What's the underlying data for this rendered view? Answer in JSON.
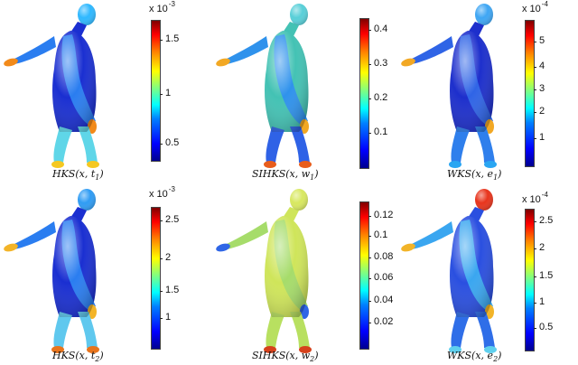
{
  "panels": [
    {
      "id": "hks-t1",
      "caption": {
        "func": "HKS",
        "arg": "x",
        "param": "t",
        "sub": "1"
      },
      "scale_label": {
        "base": "x 10",
        "exp": "-3"
      },
      "ticks": [
        "1.5",
        "1",
        "0.5"
      ],
      "colors": {
        "body": "#1a2fd1",
        "arm": "#2a7df0",
        "leg": "#5fd6e8",
        "head": "#2fb8ff",
        "hand": "#f28a1a",
        "foot": "#f5c821"
      }
    },
    {
      "id": "sihks-w1",
      "caption": {
        "func": "SIHKS",
        "arg": "x",
        "param": "w",
        "sub": "1"
      },
      "scale_label": {
        "base": "",
        "exp": ""
      },
      "ticks": [
        "0.4",
        "0.3",
        "0.2",
        "0.1"
      ],
      "colors": {
        "body": "#43c2b4",
        "arm": "#2f92ec",
        "leg": "#2f62e6",
        "head": "#58cfd8",
        "hand": "#f2a824",
        "foot": "#e85d1c"
      }
    },
    {
      "id": "wks-e1",
      "caption": {
        "func": "WKS",
        "arg": "x",
        "param": "e",
        "sub": "1"
      },
      "scale_label": {
        "base": "x 10",
        "exp": "-4"
      },
      "ticks": [
        "5",
        "4",
        "3",
        "2",
        "1"
      ],
      "colors": {
        "body": "#1d2fcc",
        "arm": "#2f64e6",
        "leg": "#2f7fec",
        "head": "#3ea6f4",
        "hand": "#f2a824",
        "foot": "#2aa6f2"
      }
    },
    {
      "id": "hks-t2",
      "caption": {
        "func": "HKS",
        "arg": "x",
        "param": "t",
        "sub": "2"
      },
      "scale_label": {
        "base": "x 10",
        "exp": "-3"
      },
      "ticks": [
        "2.5",
        "2",
        "1.5",
        "1"
      ],
      "colors": {
        "body": "#1a2fd1",
        "arm": "#2a7df0",
        "leg": "#5fc8ee",
        "head": "#2f9cf4",
        "hand": "#f3b428",
        "foot": "#e8741c"
      }
    },
    {
      "id": "sihks-w2",
      "caption": {
        "func": "SIHKS",
        "arg": "x",
        "param": "w",
        "sub": "2"
      },
      "scale_label": {
        "base": "",
        "exp": ""
      },
      "ticks": [
        "0.12",
        "0.1",
        "0.08",
        "0.06",
        "0.04",
        "0.02"
      ],
      "colors": {
        "body": "#cfe55a",
        "arm": "#a6dc6a",
        "leg": "#b8e060",
        "head": "#d8e860",
        "hand": "#2f66e6",
        "foot": "#d6421c"
      }
    },
    {
      "id": "wks-e2",
      "caption": {
        "func": "WKS",
        "arg": "x",
        "param": "e",
        "sub": "2"
      },
      "scale_label": {
        "base": "x 10",
        "exp": "-4"
      },
      "ticks": [
        "2.5",
        "2",
        "1.5",
        "1",
        "0.5"
      ],
      "colors": {
        "body": "#2a4fe0",
        "arm": "#3aa6f0",
        "leg": "#2f6ee8",
        "head": "#e8341c",
        "hand": "#f2b428",
        "foot": "#5fd0ee"
      }
    }
  ]
}
